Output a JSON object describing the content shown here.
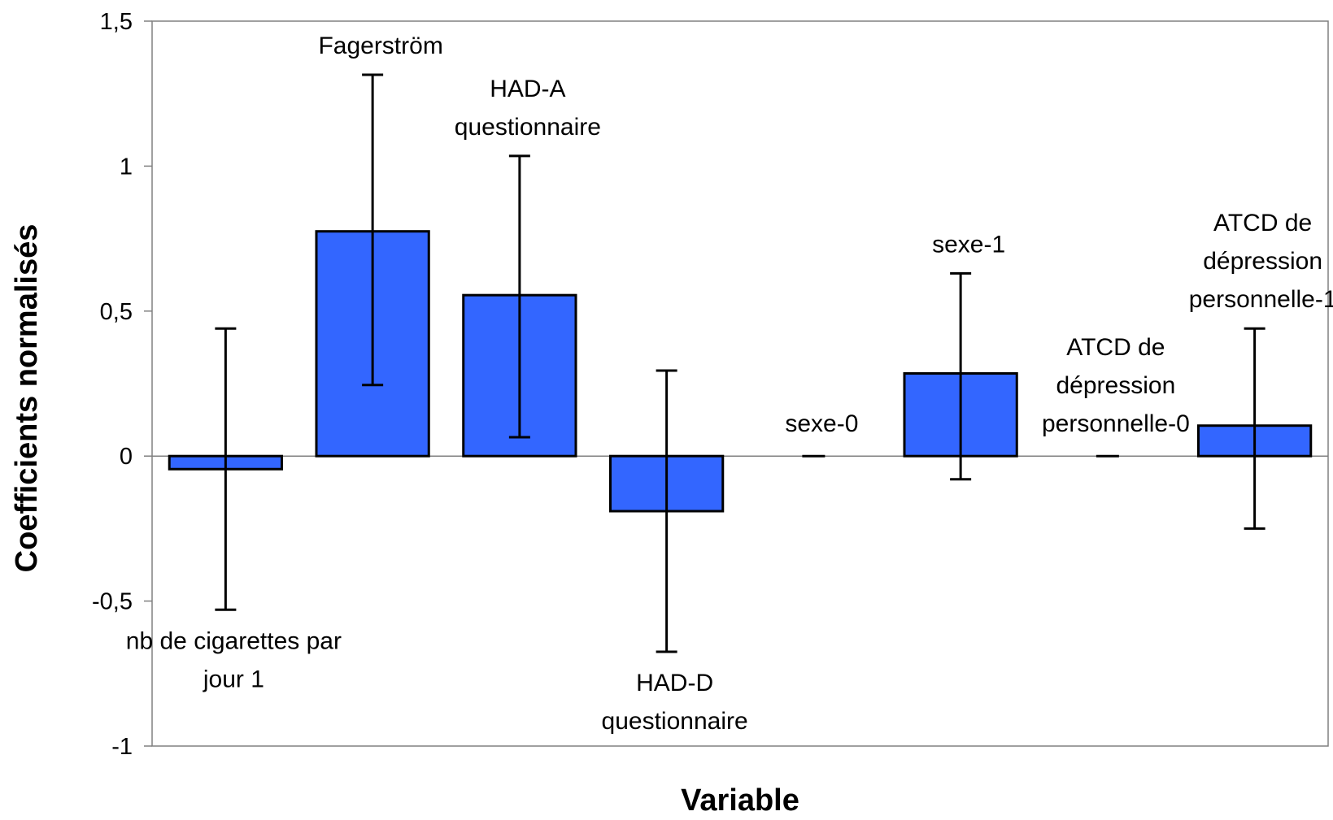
{
  "chart_data": {
    "type": "bar",
    "xlabel": "Variable",
    "ylabel": "Coefficients normalisés",
    "ylim": [
      -1,
      1.5
    ],
    "yticks": [
      {
        "value": -1,
        "label": "-1"
      },
      {
        "value": -0.5,
        "label": "-0,5"
      },
      {
        "value": 0,
        "label": "0"
      },
      {
        "value": 0.5,
        "label": "0,5"
      },
      {
        "value": 1,
        "label": "1"
      },
      {
        "value": 1.5,
        "label": "1,5"
      }
    ],
    "categories": [
      "nb de cigarettes par jour 1",
      "Fagerström",
      "HAD-A questionnaire",
      "HAD-D questionnaire",
      "sexe-0",
      "sexe-1",
      "ATCD de dépression personnelle-0",
      "ATCD de dépression personnelle-1"
    ],
    "category_label_lines": [
      [
        "nb de cigarettes par",
        "jour 1"
      ],
      [
        "Fagerström"
      ],
      [
        "HAD-A",
        "questionnaire"
      ],
      [
        "HAD-D",
        "questionnaire"
      ],
      [
        "sexe-0"
      ],
      [
        "sexe-1"
      ],
      [
        "ATCD de",
        "dépression",
        "personnelle-0"
      ],
      [
        "ATCD de",
        "dépression",
        "personnelle-1"
      ]
    ],
    "values": [
      -0.045,
      0.775,
      0.555,
      -0.19,
      0,
      0.285,
      0,
      0.105
    ],
    "error_low": [
      -0.53,
      0.245,
      0.065,
      -0.675,
      0,
      -0.08,
      0,
      -0.25
    ],
    "error_high": [
      0.44,
      1.315,
      1.035,
      0.295,
      0,
      0.63,
      0,
      0.44
    ],
    "bar_color": "#3366ff",
    "grid": false,
    "legend": "none"
  }
}
